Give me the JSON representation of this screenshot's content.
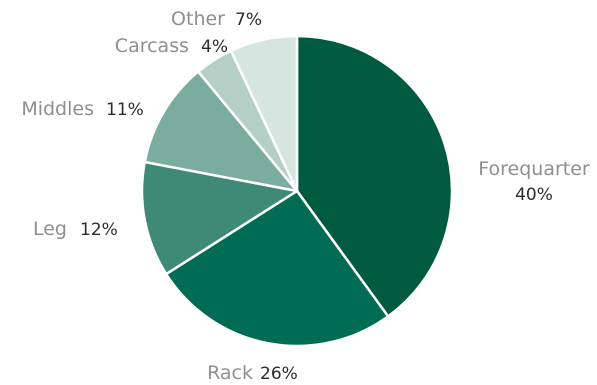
{
  "chart_data": {
    "type": "pie",
    "title": "",
    "slices": [
      {
        "label": "Forequarter",
        "value": 40,
        "value_label": "40%",
        "color": "#005a40"
      },
      {
        "label": "Rack",
        "value": 26,
        "value_label": "26%",
        "color": "#006c53"
      },
      {
        "label": "Leg",
        "value": 12,
        "value_label": "12%",
        "color": "#3e8a76"
      },
      {
        "label": "Middles",
        "value": 11,
        "value_label": "11%",
        "color": "#7aad9e"
      },
      {
        "label": "Carcass",
        "value": 4,
        "value_label": "4%",
        "color": "#b4cfc6"
      },
      {
        "label": "Other",
        "value": 7,
        "value_label": "7%",
        "color": "#d5e6e1"
      }
    ],
    "start_angle_degrees": 0,
    "direction": "clockwise",
    "legend": "none"
  }
}
